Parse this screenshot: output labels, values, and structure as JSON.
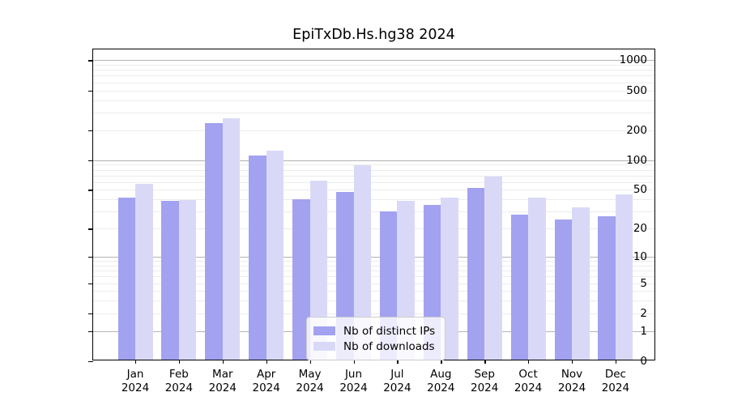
{
  "title": "EpiTxDb.Hs.hg38 2024",
  "chart_data": {
    "type": "bar",
    "title": "EpiTxDb.Hs.hg38 2024",
    "categories": [
      "Jan",
      "Feb",
      "Mar",
      "Apr",
      "May",
      "Jun",
      "Jul",
      "Aug",
      "Sep",
      "Oct",
      "Nov",
      "Dec"
    ],
    "year_label": "2024",
    "series": [
      {
        "name": "Nb of distinct IPs",
        "color": "#a2a2f0",
        "values": [
          40,
          37,
          227,
          108,
          39,
          46,
          29,
          34,
          50,
          27,
          24,
          26
        ]
      },
      {
        "name": "Nb of downloads",
        "color": "#d9d9f7",
        "values": [
          55,
          38,
          252,
          121,
          60,
          85,
          37,
          40,
          66,
          40,
          32,
          43
        ]
      }
    ],
    "yscale": "log1p",
    "ylim": [
      0,
      1100
    ],
    "y_ticks": [
      1000,
      500,
      200,
      100,
      50,
      20,
      10,
      5,
      2,
      1,
      0
    ],
    "grid": "horizontal, minor log gridlines light gray, decade gridlines gray",
    "legend_position": "bottom-center inside plot",
    "xlabel": "",
    "ylabel": ""
  },
  "colors": {
    "bar_distinct_ips": "#a2a2f0",
    "bar_downloads": "#d9d9f7",
    "grid_major": "#b3b3b3",
    "grid_minor": "#ececec",
    "frame": "#000000",
    "legend_border": "#cccccc"
  }
}
